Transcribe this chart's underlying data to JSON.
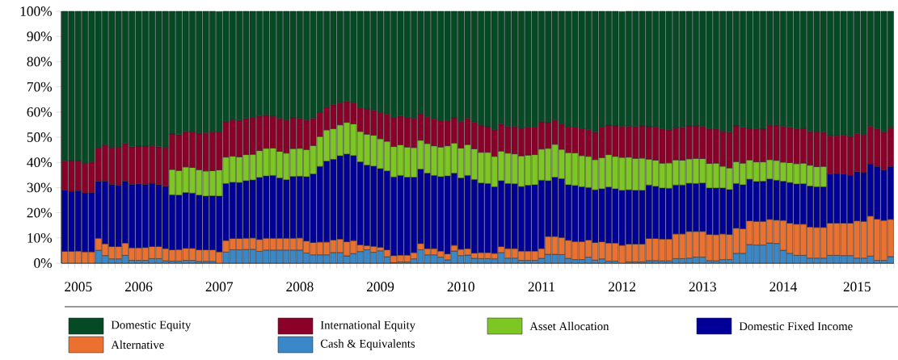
{
  "chart_data": {
    "type": "bar",
    "stacked": true,
    "legend": "bottom",
    "categories": [
      null,
      null,
      "2005",
      null,
      null,
      null,
      null,
      null,
      null,
      null,
      null,
      "2006",
      null,
      null,
      null,
      null,
      null,
      null,
      null,
      null,
      null,
      null,
      null,
      "2007",
      null,
      null,
      null,
      null,
      null,
      null,
      null,
      null,
      null,
      null,
      null,
      "2008",
      null,
      null,
      null,
      null,
      null,
      null,
      null,
      null,
      null,
      null,
      null,
      "2009",
      null,
      null,
      null,
      null,
      null,
      null,
      null,
      null,
      null,
      null,
      null,
      "2010",
      null,
      null,
      null,
      null,
      null,
      null,
      null,
      null,
      null,
      null,
      null,
      "2011",
      null,
      null,
      null,
      null,
      null,
      null,
      null,
      null,
      null,
      null,
      null,
      "2012",
      null,
      null,
      null,
      null,
      null,
      null,
      null,
      null,
      null,
      null,
      null,
      "2013",
      null,
      null,
      null,
      null,
      null,
      null,
      null,
      null,
      null,
      null,
      null,
      "2014",
      null,
      null,
      null,
      null,
      null,
      null,
      null,
      null,
      null,
      null,
      "2015",
      null,
      null,
      null,
      null,
      null
    ],
    "ylim": [
      0,
      100
    ],
    "yticks": [
      {
        "value": 0,
        "label": "0%"
      },
      {
        "value": 10,
        "label": "10%"
      },
      {
        "value": 20,
        "label": "20%"
      },
      {
        "value": 30,
        "label": "30%"
      },
      {
        "value": 40,
        "label": "40%"
      },
      {
        "value": 50,
        "label": "50%"
      },
      {
        "value": 60,
        "label": "60%"
      },
      {
        "value": 70,
        "label": "70%"
      },
      {
        "value": 80,
        "label": "80%"
      },
      {
        "value": 90,
        "label": "90%"
      },
      {
        "value": 100,
        "label": "100%"
      }
    ],
    "series": [
      {
        "name": "Cash & Equivalents",
        "color": "#3a88c8",
        "values": [
          null,
          null,
          null,
          null,
          null,
          5.1,
          3,
          1.7,
          1.7,
          3.1,
          1.1,
          1.1,
          1.1,
          1.8,
          1.8,
          0.9,
          0.8,
          0.8,
          1.1,
          1.1,
          0.7,
          0.7,
          0.7,
          null,
          4.4,
          5.3,
          5.3,
          5.4,
          5.5,
          4.7,
          5.2,
          5.2,
          5.2,
          5.2,
          5.2,
          5.2,
          4,
          3.3,
          3.3,
          3.3,
          4.2,
          4.2,
          2.9,
          3.8,
          4.6,
          5.3,
          4.3,
          4.9,
          2.5,
          0.2,
          0.5,
          0.5,
          1.7,
          5.3,
          3.3,
          3.3,
          2.4,
          1.3,
          4.8,
          3,
          3.2,
          1.9,
          1.8,
          1.8,
          1.7,
          4.2,
          2,
          2,
          1.1,
          1.1,
          1.1,
          1.9,
          3.5,
          3.5,
          3.4,
          1.9,
          1.4,
          1.4,
          2.4,
          1.2,
          1.7,
          0.8,
          0.8,
          null,
          0.5,
          0.5,
          0.5,
          1,
          1,
          0.9,
          0.9,
          1.8,
          1.8,
          2,
          2.4,
          2.4,
          1,
          0.9,
          1.4,
          1.4,
          3.9,
          3.9,
          7.4,
          7.2,
          7.2,
          8,
          7.8,
          5.1,
          3.9,
          3.1,
          3.1,
          2,
          2,
          2,
          3.1,
          3.1,
          3,
          3,
          2,
          2,
          2.8,
          1.1,
          1.1,
          2.6
        ]
      },
      {
        "name": "Alternative",
        "color": "#eb7130",
        "values": [
          4.7,
          4.7,
          4.8,
          4.5,
          4.5,
          4.8,
          4.7,
          4.9,
          4.9,
          4.9,
          5,
          5,
          5.1,
          4.8,
          4.8,
          4.9,
          4.5,
          4.6,
          4.8,
          4.8,
          4.6,
          4.6,
          4.6,
          4.5,
          4.6,
          4.5,
          4.5,
          4.5,
          4.5,
          4.7,
          4.7,
          4.7,
          4.7,
          4.7,
          4.7,
          4.8,
          4.8,
          4.9,
          5.1,
          5.1,
          5,
          5.4,
          5.6,
          5.2,
          2.7,
          1.7,
          2.4,
          1.4,
          2.8,
          2.8,
          2.7,
          2.7,
          2.5,
          2.5,
          2.5,
          2.5,
          2.4,
          2.4,
          2.3,
          2.5,
          2.6,
          2.1,
          2.4,
          2.4,
          2.2,
          2.4,
          3.8,
          3.8,
          3.7,
          3.7,
          3.7,
          3.9,
          7.1,
          7.1,
          6.8,
          7.2,
          7.2,
          7.2,
          6.8,
          7,
          6.8,
          7.2,
          7.2,
          7.1,
          7.1,
          7.1,
          7.1,
          8.8,
          8.8,
          8.7,
          8.7,
          9.8,
          9.8,
          10.6,
          10.2,
          10.2,
          10.4,
          10.4,
          10.2,
          10,
          10,
          9.8,
          9.4,
          9.4,
          9.4,
          9.4,
          9.3,
          11.9,
          12,
          12.4,
          12.4,
          12.4,
          12.2,
          12.2,
          12.8,
          12.8,
          12.9,
          12.9,
          14.8,
          14.6,
          15.9,
          16.4,
          15.9,
          14.8
        ]
      },
      {
        "name": "Domestic Fixed Income",
        "color": "#000099",
        "values": [
          24.3,
          23.8,
          24,
          23.4,
          23.5,
          22.7,
          24.9,
          24.7,
          24.4,
          24.6,
          25.2,
          25.4,
          25.1,
          25.1,
          24.6,
          24.7,
          21.8,
          21.6,
          22.1,
          21.9,
          21.7,
          21.3,
          21.4,
          22.1,
          22.6,
          22.3,
          22.2,
          22.8,
          23,
          24.6,
          24.7,
          24.9,
          23.9,
          23.2,
          24.5,
          24.5,
          25.5,
          27.2,
          30,
          32.1,
          32,
          33,
          34.8,
          33.7,
          32.9,
          31.9,
          31.8,
          31.2,
          31.3,
          31.2,
          31.6,
          30.9,
          29.9,
          29.5,
          29.9,
          29,
          29.5,
          30.9,
          28.6,
          28.3,
          29,
          29.2,
          27.6,
          27.4,
          26.4,
          26.1,
          25.8,
          25.7,
          25.6,
          26.1,
          26.3,
          27.1,
          22.1,
          23.5,
          23.3,
          22,
          22.2,
          21.7,
          20.8,
          20.9,
          21,
          22.2,
          21.5,
          21.8,
          21.5,
          21.3,
          21.3,
          21.2,
          20.7,
          20.2,
          20.1,
          19.4,
          19.4,
          19.1,
          19,
          19.2,
          18.4,
          18.5,
          18.2,
          17.8,
          17.7,
          17.4,
          16.5,
          15.8,
          15.9,
          16,
          15.8,
          15.5,
          16.1,
          15.9,
          16,
          16.2,
          16.1,
          16.1,
          19.5,
          19.7,
          19.5,
          19,
          19.5,
          19.3,
          20.7,
          20.9,
          20,
          21
        ]
      },
      {
        "name": "Asset Allocation",
        "color": "#7dc623",
        "values": [
          null,
          null,
          null,
          null,
          null,
          null,
          null,
          null,
          null,
          null,
          null,
          null,
          null,
          null,
          null,
          null,
          10.1,
          9.8,
          10.2,
          10.2,
          10.1,
          10,
          10,
          10.4,
          10.5,
          10.4,
          10.2,
          10.4,
          10.2,
          10.7,
          11,
          10.9,
          10.6,
          10.6,
          11.1,
          11.1,
          10.8,
          11.3,
          11.9,
          12.4,
          12.2,
          12.3,
          12.6,
          12.6,
          12.1,
          12.3,
          12.3,
          11.9,
          11.8,
          12.1,
          12.2,
          12,
          11.8,
          11.5,
          11.8,
          11.8,
          11.8,
          12,
          12,
          11.9,
          12.3,
          12.2,
          12.2,
          12.4,
          12.1,
          11.8,
          12.1,
          11.9,
          12.2,
          12,
          12,
          12.4,
          12.9,
          13.1,
          11.7,
          12.8,
          13,
          12.4,
          12.4,
          12,
          12.4,
          12.9,
          12.9,
          13.1,
          13,
          12.7,
          12.8,
          10.3,
          10.4,
          9.9,
          10.1,
          10,
          9.9,
          9.7,
          10,
          9.7,
          9.8,
          9.9,
          8.7,
          8.6,
          8.7,
          8.6,
          7.7,
          7.8,
          7.7,
          7.7,
          7.9,
          7.6,
          7.9,
          8.1,
          8.2,
          8.3,
          8,
          8.1,
          null,
          null,
          null,
          null,
          null,
          null,
          null,
          null,
          null,
          null
        ]
      },
      {
        "name": "International Equity",
        "color": "#8b0029",
        "values": [
          11.6,
          12.2,
          11.9,
          11.8,
          12.3,
          13.2,
          14.3,
          14.7,
          15.1,
          14.9,
          14.9,
          15,
          15.2,
          15,
          15,
          15.6,
          14.1,
          14.2,
          14.1,
          14.2,
          14.6,
          15.2,
          15.4,
          15.1,
          14.1,
          14.5,
          14.6,
          14.4,
          14.6,
          13.7,
          13.2,
          12.6,
          13.2,
          13.2,
          12.2,
          12,
          11.8,
          10.9,
          9.6,
          9.1,
          9.5,
          8.8,
          8.3,
          8.4,
          9.4,
          10,
          10,
          10.4,
          10.8,
          11.5,
          11.4,
          11.7,
          11.7,
          10.6,
          10.7,
          10.7,
          10.5,
          9.9,
          10,
          10.6,
          10.5,
          10.6,
          10.9,
          10.2,
          10.6,
          10.7,
          10.6,
          10.9,
          11.1,
          11.1,
          10.9,
          10.9,
          10.2,
          9.7,
          10,
          10.2,
          10.2,
          10.7,
          10.7,
          10.9,
          12.2,
          11.7,
          12.1,
          12.4,
          12.3,
          12.7,
          12.8,
          12.9,
          13.2,
          13.6,
          13.2,
          12.8,
          13,
          13.1,
          12.9,
          12.9,
          13.7,
          13.6,
          13.9,
          14.2,
          14.2,
          14.2,
          12.5,
          13.1,
          13,
          13.8,
          14.1,
          14.3,
          14,
          13.8,
          13.8,
          13.4,
          13.9,
          13.6,
          15.2,
          15,
          15.5,
          15.5,
          15.2,
          15.3,
          15,
          14.9,
          15,
          15.4
        ]
      },
      {
        "name": "Domestic Equity",
        "color": "#034a25",
        "values": [
          59.4,
          59.3,
          59.3,
          60.3,
          59.7,
          54.2,
          53.1,
          54,
          53.9,
          52.5,
          53.8,
          53.5,
          53.5,
          53.3,
          53.8,
          53.9,
          48.7,
          49,
          47.7,
          47.8,
          48.3,
          48.2,
          47.9,
          47.8,
          43.8,
          43,
          43.2,
          42.5,
          42.2,
          41.6,
          41.2,
          41.7,
          42.4,
          43.1,
          42.3,
          42.4,
          43.1,
          42.4,
          40.1,
          38,
          37.1,
          36.3,
          35.8,
          36.3,
          38.3,
          38.8,
          39.2,
          40.2,
          40.8,
          42.2,
          41.6,
          42.2,
          42.4,
          40.6,
          41.8,
          42.7,
          43.4,
          43.5,
          42.3,
          43.7,
          42.4,
          44,
          45.1,
          45.8,
          47,
          44.8,
          45.7,
          45.7,
          46.3,
          46,
          46,
          43.8,
          44.2,
          43.1,
          44.8,
          45.9,
          46,
          46.6,
          46.9,
          48,
          45.9,
          45.2,
          45.5,
          45.5,
          45.6,
          45.7,
          45.5,
          45.8,
          45.9,
          46.7,
          47,
          46.2,
          46.1,
          45.5,
          45.5,
          45.6,
          46.7,
          46.7,
          47.6,
          48,
          45.5,
          46.1,
          46.5,
          46.7,
          46.8,
          45.1,
          45.1,
          45.6,
          46.1,
          46.7,
          46.5,
          47.7,
          47.8,
          48,
          49.4,
          49.4,
          49.1,
          49.6,
          48.5,
          48.8,
          45.6,
          46.7,
          48,
          46.2
        ]
      }
    ]
  }
}
